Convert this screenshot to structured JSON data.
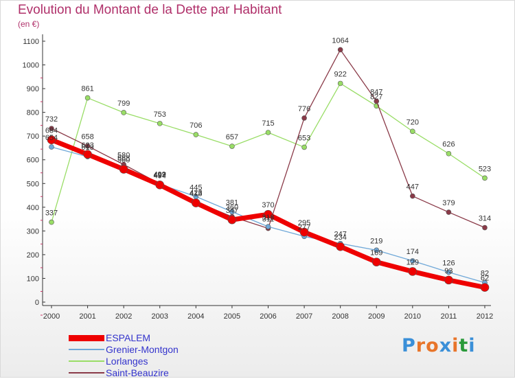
{
  "title": "Evolution du Montant de la Dette par Habitant",
  "subtitle": "(en €)",
  "logo": {
    "text": "Proxiti",
    "letter_colors": [
      "#3a8fd8",
      "#e8752a",
      "#e8752a",
      "#3a8fd8",
      "#e8752a",
      "#2a9a3a",
      "#3a8fd8"
    ]
  },
  "colors": {
    "ESPALEM": "#ee0000",
    "Grenier-Montgon": "#6fa8d8",
    "Lorlanges": "#99dd66",
    "Saint-Beauzire": "#8a3a48",
    "axis": "#333333",
    "grid": "#dddddd",
    "title": "#b0306a",
    "legend_text": "#3333cc"
  },
  "chart_data": {
    "type": "line",
    "title": "Evolution du Montant de la Dette par Habitant",
    "subtitle": "(en €)",
    "xlabel": "",
    "ylabel": "",
    "categories": [
      "2000",
      "2001",
      "2002",
      "2003",
      "2004",
      "2005",
      "2006",
      "2007",
      "2008",
      "2009",
      "2010",
      "2011",
      "2012"
    ],
    "ylim": [
      0,
      1100
    ],
    "yticks": [
      "0",
      "100",
      "200",
      "300",
      "400",
      "500",
      "600",
      "700",
      "800",
      "900",
      "1000",
      "1100"
    ],
    "grid": false,
    "legend_position": "bottom-left",
    "series": [
      {
        "name": "ESPALEM",
        "values": [
          684,
          623,
          560,
          494,
          418,
          347,
          370,
          295,
          234,
          169,
          129,
          93,
          62
        ],
        "labels": [
          "684",
          "623",
          "560",
          "494",
          "418",
          "347",
          "370",
          "295",
          "234",
          "169",
          "129",
          "93",
          "62"
        ]
      },
      {
        "name": "Grenier-Montgon",
        "values": [
          654,
          613,
          568,
          497,
          445,
          381,
          318,
          277,
          247,
          219,
          174,
          126,
          82
        ],
        "labels": [
          "654",
          "613",
          "568",
          "497",
          "445",
          "381",
          "318",
          "277",
          "247",
          "219",
          "174",
          "126",
          "82"
        ]
      },
      {
        "name": "Lorlanges",
        "values": [
          337,
          861,
          799,
          753,
          706,
          657,
          715,
          653,
          922,
          827,
          720,
          626,
          523
        ],
        "labels": [
          "337",
          "861",
          "799",
          "753",
          "706",
          "657",
          "715",
          "653",
          "922",
          "827",
          "720",
          "626",
          "523"
        ]
      },
      {
        "name": "Saint-Beauzire",
        "values": [
          732,
          658,
          580,
          499,
          423,
          360,
          311,
          776,
          1064,
          847,
          447,
          379,
          314
        ],
        "labels": [
          "732",
          "658",
          "580",
          "499",
          "423",
          "360",
          "311",
          "776",
          "1064",
          "847",
          "447",
          "379",
          "314"
        ]
      }
    ]
  }
}
